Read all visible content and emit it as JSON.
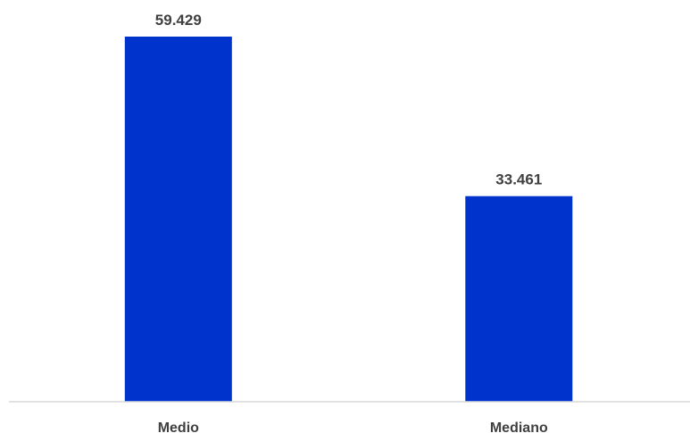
{
  "chart_data": {
    "type": "bar",
    "categories": [
      "Medio",
      "Mediano"
    ],
    "values": [
      59429,
      33461
    ],
    "value_labels": [
      "59.429",
      "33.461"
    ],
    "title": "",
    "xlabel": "",
    "ylabel": "",
    "ylim": [
      0,
      60000
    ],
    "grid": false,
    "legend": "none",
    "bar_color": "#0033CC",
    "axis_color": "#D9D9D9",
    "label_color": "#404040"
  }
}
